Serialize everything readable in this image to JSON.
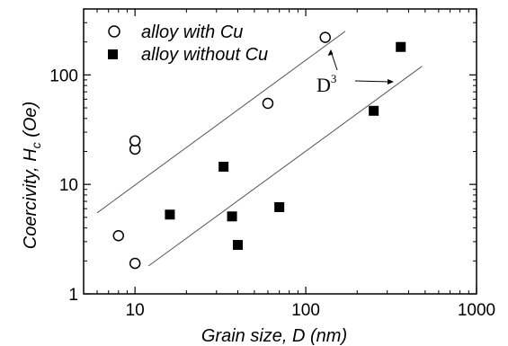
{
  "chart_data": {
    "type": "scatter",
    "title": "",
    "xlabel": "Grain size, D (nm)",
    "ylabel_main": "Coercivity, H",
    "ylabel_sub": "c",
    "ylabel_unit": " (Oe)",
    "x_scale": "log",
    "y_scale": "log",
    "xlim": [
      5,
      1000
    ],
    "ylim": [
      1,
      400
    ],
    "x_ticks": [
      10,
      100,
      1000
    ],
    "x_tick_labels": [
      "10",
      "100",
      "1000"
    ],
    "y_ticks": [
      1,
      10,
      100
    ],
    "y_tick_labels": [
      "1",
      "10",
      "100"
    ],
    "grid": false,
    "legend_position": "top-left",
    "series": [
      {
        "name": "alloy with Cu",
        "marker": "open-circle",
        "color": "#000000",
        "x": [
          8,
          10,
          10,
          10,
          60,
          130
        ],
        "y": [
          3.4,
          1.9,
          21,
          25,
          55,
          220
        ]
      },
      {
        "name": "alloy without Cu",
        "marker": "filled-square",
        "color": "#000000",
        "x": [
          16,
          33,
          37,
          40,
          70,
          250,
          360
        ],
        "y": [
          5.3,
          14.5,
          5.1,
          2.8,
          6.2,
          47,
          180
        ]
      }
    ],
    "fit_lines": [
      {
        "x": [
          6,
          170
        ],
        "y": [
          5.5,
          250
        ]
      },
      {
        "x": [
          12,
          480
        ],
        "y": [
          1.8,
          120
        ]
      }
    ],
    "annotation": {
      "base": "D",
      "exponent": "3"
    }
  }
}
